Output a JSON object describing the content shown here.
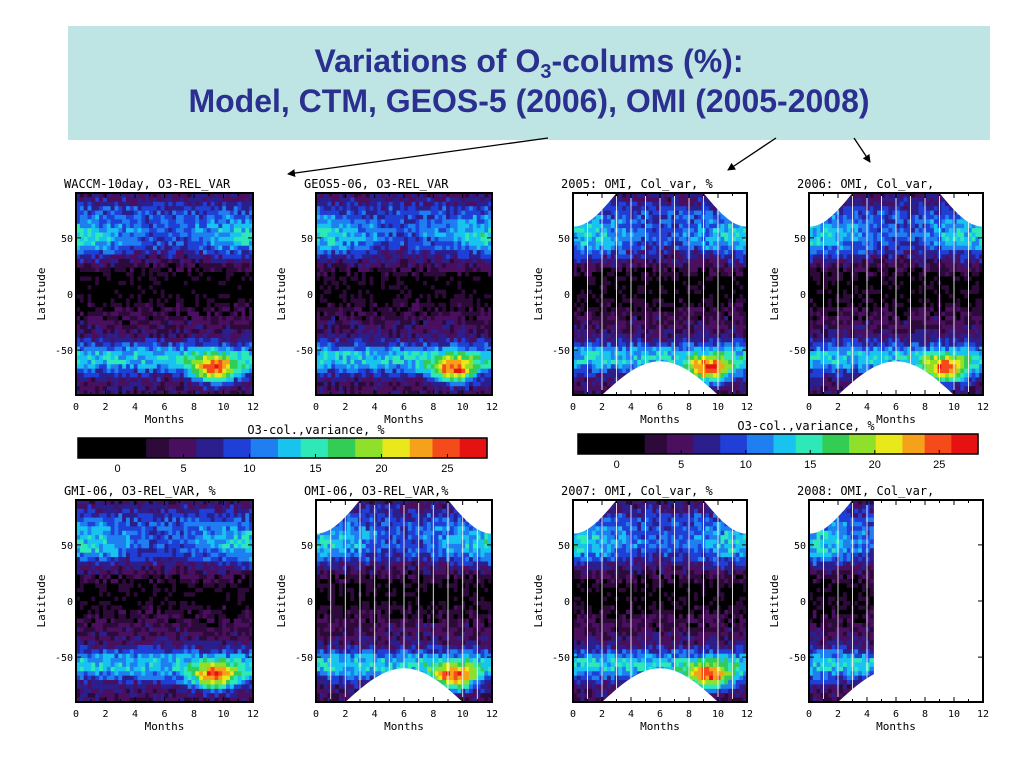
{
  "slide": {
    "title_line1_part1": "Variations of O",
    "title_line1_sub": "3",
    "title_line1_part2": "-colums (%):",
    "title_line2": "Model, CTM, GEOS-5 (2006), OMI (2005-2008)"
  },
  "colors": {
    "title_bg": "#bfe4e4",
    "title_text": "#2b2f8f",
    "colormap": [
      "#000000",
      "#2d0a3a",
      "#4a0f5e",
      "#2a1f8c",
      "#1f3fd6",
      "#1f7ff0",
      "#19c3f0",
      "#2ee8b8",
      "#33cc55",
      "#8fe02a",
      "#e8e81a",
      "#f5a21a",
      "#f54a1a",
      "#e61212"
    ]
  },
  "chart_data": [
    {
      "type": "heatmap",
      "title": "WACCM-10day, O3-REL_VAR",
      "xlabel": "Months",
      "ylabel": "Latitude",
      "xticks": [
        "0",
        "2",
        "4",
        "6",
        "8",
        "10",
        "12"
      ],
      "yticks": [
        "50",
        "0",
        "-50"
      ],
      "xlim": [
        0,
        12
      ],
      "ylim": [
        -90,
        90
      ],
      "zlim": [
        0,
        28
      ],
      "masked": false,
      "data_cutoff_month": null
    },
    {
      "type": "heatmap",
      "title": "GEOS5-06, O3-REL_VAR",
      "xlabel": "Months",
      "ylabel": "Latitude",
      "xticks": [
        "0",
        "2",
        "4",
        "6",
        "8",
        "10",
        "12"
      ],
      "yticks": [
        "50",
        "0",
        "-50"
      ],
      "xlim": [
        0,
        12
      ],
      "ylim": [
        -90,
        90
      ],
      "zlim": [
        0,
        28
      ],
      "masked": false,
      "data_cutoff_month": null
    },
    {
      "type": "heatmap",
      "title": "2005: OMI, Col_var, %",
      "xlabel": "Months",
      "ylabel": "Latitude",
      "xticks": [
        "0",
        "2",
        "4",
        "6",
        "8",
        "10",
        "12"
      ],
      "yticks": [
        "50",
        "0",
        "-50"
      ],
      "xlim": [
        0,
        12
      ],
      "ylim": [
        -90,
        90
      ],
      "zlim": [
        0,
        28
      ],
      "masked": true,
      "data_cutoff_month": null
    },
    {
      "type": "heatmap",
      "title": "2006: OMI, Col_var,",
      "xlabel": "Months",
      "ylabel": "Latitude",
      "xticks": [
        "0",
        "2",
        "4",
        "6",
        "8",
        "10",
        "12"
      ],
      "yticks": [
        "50",
        "0",
        "-50"
      ],
      "xlim": [
        0,
        12
      ],
      "ylim": [
        -90,
        90
      ],
      "zlim": [
        0,
        28
      ],
      "masked": true,
      "data_cutoff_month": null
    },
    {
      "type": "heatmap",
      "title": "GMI-06, O3-REL_VAR, %",
      "xlabel": "Months",
      "ylabel": "Latitude",
      "xticks": [
        "0",
        "2",
        "4",
        "6",
        "8",
        "10",
        "12"
      ],
      "yticks": [
        "50",
        "0",
        "-50"
      ],
      "xlim": [
        0,
        12
      ],
      "ylim": [
        -90,
        90
      ],
      "zlim": [
        0,
        28
      ],
      "masked": false,
      "data_cutoff_month": null
    },
    {
      "type": "heatmap",
      "title": "OMI-06, O3-REL_VAR,%",
      "xlabel": "Months",
      "ylabel": "Latitude",
      "xticks": [
        "0",
        "2",
        "4",
        "6",
        "8",
        "10",
        "12"
      ],
      "yticks": [
        "50",
        "0",
        "-50"
      ],
      "xlim": [
        0,
        12
      ],
      "ylim": [
        -90,
        90
      ],
      "zlim": [
        0,
        28
      ],
      "masked": true,
      "data_cutoff_month": null
    },
    {
      "type": "heatmap",
      "title": "2007: OMI, Col_var, %",
      "xlabel": "Months",
      "ylabel": "Latitude",
      "xticks": [
        "0",
        "2",
        "4",
        "6",
        "8",
        "10",
        "12"
      ],
      "yticks": [
        "50",
        "0",
        "-50"
      ],
      "xlim": [
        0,
        12
      ],
      "ylim": [
        -90,
        90
      ],
      "zlim": [
        0,
        28
      ],
      "masked": true,
      "data_cutoff_month": null
    },
    {
      "type": "heatmap",
      "title": "2008: OMI, Col_var,",
      "xlabel": "Months",
      "ylabel": "Latitude",
      "xticks": [
        "0",
        "2",
        "4",
        "6",
        "8",
        "10",
        "12"
      ],
      "yticks": [
        "50",
        "0",
        "-50"
      ],
      "xlim": [
        0,
        12
      ],
      "ylim": [
        -90,
        90
      ],
      "zlim": [
        0,
        28
      ],
      "masked": true,
      "data_cutoff_month": 4.5
    }
  ],
  "colorbars": [
    {
      "label": "O3-col.,variance, %",
      "ticks": [
        "0",
        "5",
        "10",
        "15",
        "20",
        "25"
      ],
      "range": [
        -3,
        28
      ]
    },
    {
      "label": "O3-col.,variance, %",
      "ticks": [
        "0",
        "5",
        "10",
        "15",
        "20",
        "25"
      ],
      "range": [
        -3,
        28
      ]
    }
  ]
}
